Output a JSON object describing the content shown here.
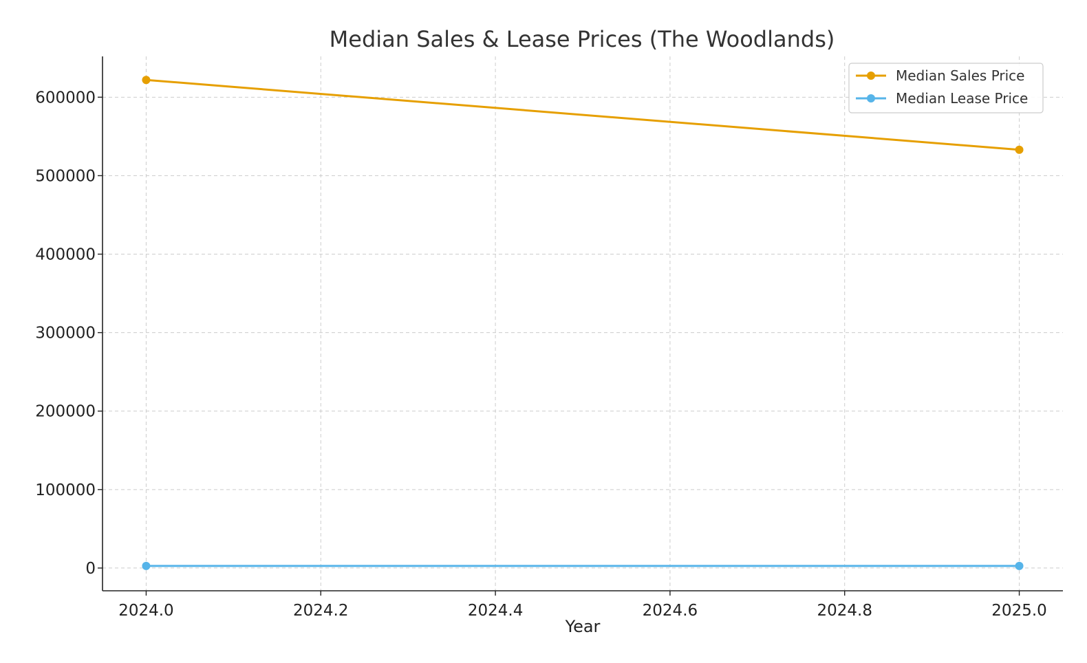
{
  "chart_data": {
    "type": "line",
    "title": "Median Sales & Lease Prices (The Woodlands)",
    "xlabel": "Year",
    "ylabel": "",
    "xlim": [
      2023.95,
      2025.05
    ],
    "ylim": [
      -29000,
      652000
    ],
    "x_ticks": [
      2024.0,
      2024.2,
      2024.4,
      2024.6,
      2024.8,
      2025.0
    ],
    "x_tick_labels": [
      "2024.0",
      "2024.2",
      "2024.4",
      "2024.6",
      "2024.8",
      "2025.0"
    ],
    "y_ticks": [
      0,
      100000,
      200000,
      300000,
      400000,
      500000,
      600000
    ],
    "y_tick_labels": [
      "0",
      "100000",
      "200000",
      "300000",
      "400000",
      "500000",
      "600000"
    ],
    "grid": true,
    "legend_position": "top-right",
    "x": [
      2024,
      2025
    ],
    "series": [
      {
        "name": "Median Sales Price",
        "color": "#E69F00",
        "values": [
          622000,
          533000
        ]
      },
      {
        "name": "Median Lease Price",
        "color": "#56B4E9",
        "values": [
          2700,
          2650
        ]
      }
    ]
  }
}
